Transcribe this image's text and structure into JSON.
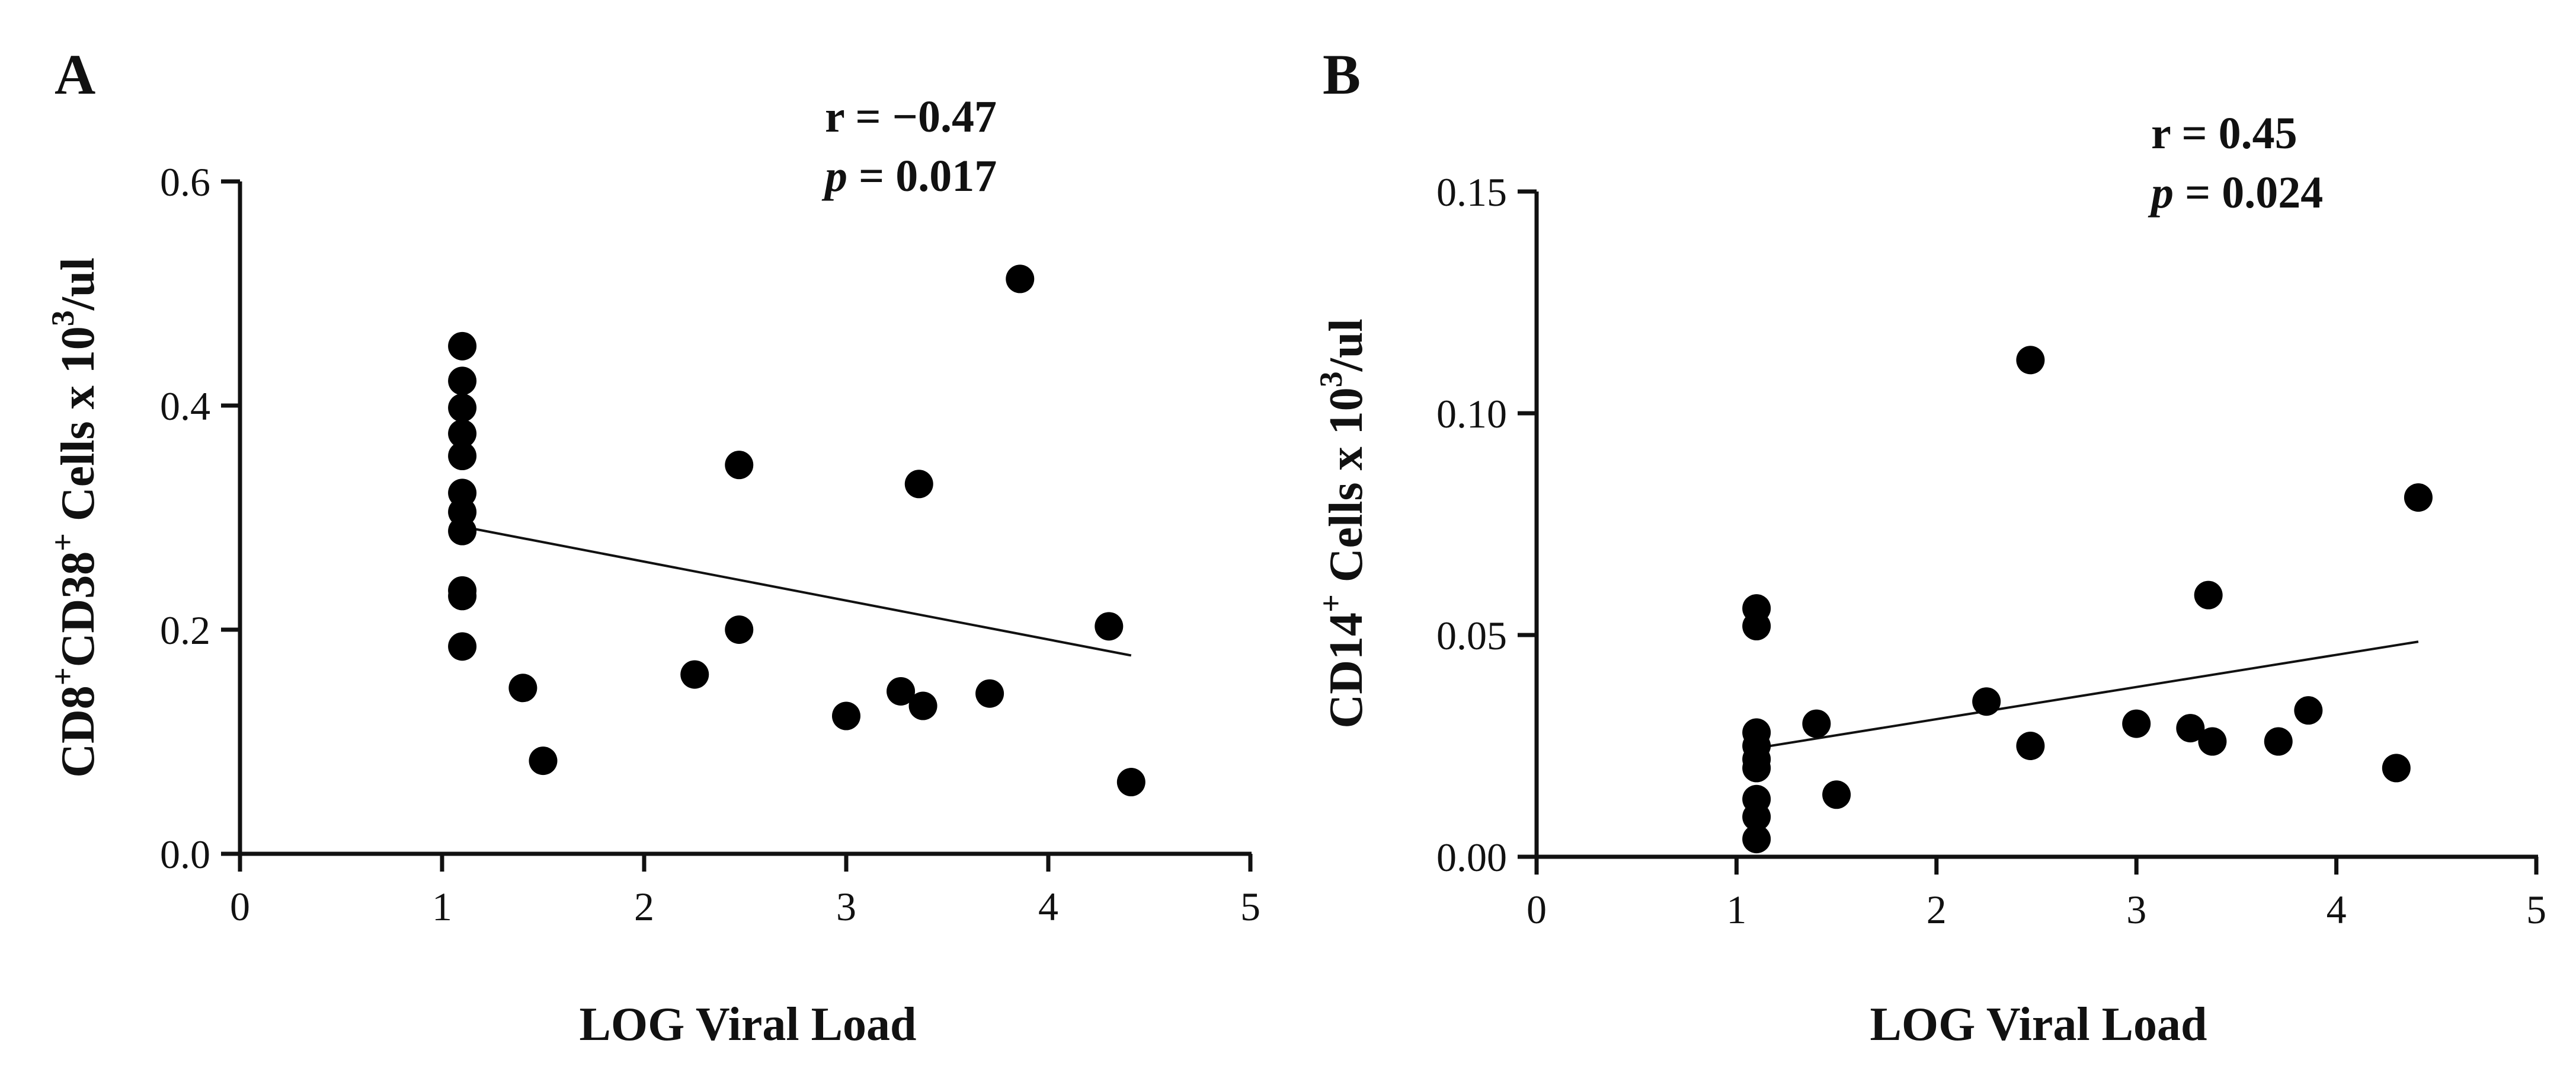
{
  "chart_data": [
    {
      "type": "scatter",
      "panel_label": "A",
      "xlabel": "LOG Viral Load",
      "ylabel": {
        "p1": "CD8",
        "s1": "+",
        "p2": "CD38",
        "s2": "+",
        "p3": " Cells x 10",
        "s3": "3",
        "p4": "/ul"
      },
      "r_label": "r = −0.47",
      "p_label": {
        "p": "p",
        "rest": " = 0.017"
      },
      "xlim": [
        0,
        5
      ],
      "ylim": [
        0,
        0.6
      ],
      "xticks": [
        0,
        1,
        2,
        3,
        4,
        5
      ],
      "xtick_labels": [
        "0",
        "1",
        "2",
        "3",
        "4",
        "5"
      ],
      "yticks": [
        0.0,
        0.2,
        0.4,
        0.6
      ],
      "ytick_labels": [
        "0.0",
        "0.2",
        "0.4",
        "0.6"
      ],
      "points": [
        [
          1.1,
          0.453
        ],
        [
          1.1,
          0.422
        ],
        [
          1.1,
          0.398
        ],
        [
          1.1,
          0.375
        ],
        [
          1.1,
          0.355
        ],
        [
          1.1,
          0.322
        ],
        [
          1.1,
          0.305
        ],
        [
          1.1,
          0.288
        ],
        [
          1.1,
          0.235
        ],
        [
          1.1,
          0.23
        ],
        [
          1.1,
          0.185
        ],
        [
          1.4,
          0.148
        ],
        [
          1.5,
          0.083
        ],
        [
          2.25,
          0.16
        ],
        [
          2.47,
          0.347
        ],
        [
          2.47,
          0.2
        ],
        [
          3.0,
          0.123
        ],
        [
          3.27,
          0.145
        ],
        [
          3.36,
          0.33
        ],
        [
          3.38,
          0.132
        ],
        [
          3.71,
          0.143
        ],
        [
          3.86,
          0.513
        ],
        [
          4.3,
          0.203
        ],
        [
          4.41,
          0.064
        ]
      ],
      "fit_line": {
        "x": [
          1.1,
          4.41
        ],
        "y": [
          0.292,
          0.177
        ]
      }
    },
    {
      "type": "scatter",
      "panel_label": "B",
      "xlabel": "LOG Viral Load",
      "ylabel": {
        "p1": "CD14",
        "s1": "+",
        "p2": " Cells x 10",
        "s2": "3",
        "p3": "/ul"
      },
      "r_label": "r = 0.45",
      "p_label": {
        "p": "p",
        "rest": " = 0.024"
      },
      "xlim": [
        0,
        5
      ],
      "ylim": [
        0,
        0.15
      ],
      "xticks": [
        0,
        1,
        2,
        3,
        4,
        5
      ],
      "xtick_labels": [
        "0",
        "1",
        "2",
        "3",
        "4",
        "5"
      ],
      "yticks": [
        0.0,
        0.05,
        0.1,
        0.15
      ],
      "ytick_labels": [
        "0.00",
        "0.05",
        "0.10",
        "0.15"
      ],
      "points": [
        [
          1.1,
          0.056
        ],
        [
          1.1,
          0.052
        ],
        [
          1.1,
          0.028
        ],
        [
          1.1,
          0.025
        ],
        [
          1.1,
          0.022
        ],
        [
          1.1,
          0.02
        ],
        [
          1.1,
          0.013
        ],
        [
          1.1,
          0.009
        ],
        [
          1.1,
          0.004
        ],
        [
          1.4,
          0.03
        ],
        [
          1.5,
          0.014
        ],
        [
          2.25,
          0.035
        ],
        [
          2.47,
          0.112
        ],
        [
          2.47,
          0.025
        ],
        [
          3.0,
          0.03
        ],
        [
          3.27,
          0.029
        ],
        [
          3.36,
          0.059
        ],
        [
          3.38,
          0.026
        ],
        [
          3.71,
          0.026
        ],
        [
          3.86,
          0.033
        ],
        [
          4.3,
          0.02
        ],
        [
          4.41,
          0.081
        ]
      ],
      "fit_line": {
        "x": [
          1.1,
          4.41
        ],
        "y": [
          0.0245,
          0.0485
        ]
      }
    }
  ]
}
